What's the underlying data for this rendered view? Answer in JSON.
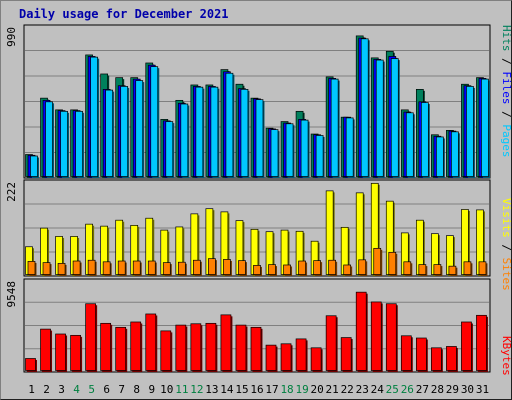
{
  "chart_data": {
    "type": "bar",
    "title": "Daily usage for December 2021",
    "categories": [
      "1",
      "2",
      "3",
      "4",
      "5",
      "6",
      "7",
      "8",
      "9",
      "10",
      "11",
      "12",
      "13",
      "14",
      "15",
      "16",
      "17",
      "18",
      "19",
      "20",
      "21",
      "22",
      "23",
      "24",
      "25",
      "26",
      "27",
      "28",
      "29",
      "30",
      "31"
    ],
    "weekend_days": [
      "4",
      "5",
      "11",
      "12",
      "18",
      "19",
      "25",
      "26"
    ],
    "panels": [
      {
        "name": "hits-files-pages",
        "ymax_label": "990",
        "ymax": 990,
        "right_labels": [
          "Hits",
          "Files",
          "Pages"
        ],
        "series": [
          {
            "name": "Hits",
            "color": "#00805c",
            "values": [
              150,
              535,
              455,
              455,
              830,
              700,
              675,
              675,
              775,
              390,
              520,
              625,
              625,
              730,
              630,
              535,
              330,
              375,
              445,
              290,
              680,
              405,
              960,
              810,
              855,
              455,
              595,
              285,
              315,
              630,
              675
            ]
          },
          {
            "name": "Files",
            "color": "#0000ff",
            "values": [
              145,
              520,
              450,
              450,
              820,
              595,
              620,
              665,
              760,
              380,
              500,
              615,
              615,
              715,
              600,
              530,
              325,
              365,
              390,
              285,
              670,
              405,
              945,
              800,
              820,
              440,
              510,
              275,
              310,
              620,
              670
            ]
          },
          {
            "name": "Pages",
            "color": "#00c8ff",
            "values": [
              140,
              510,
              445,
              445,
              815,
              590,
              615,
              655,
              750,
              375,
              495,
              610,
              610,
              705,
              595,
              525,
              320,
              360,
              385,
              280,
              665,
              400,
              940,
              795,
              805,
              435,
              505,
              270,
              305,
              615,
              665
            ]
          }
        ]
      },
      {
        "name": "visits-sites",
        "ymax_label": "222",
        "ymax": 222,
        "right_labels": [
          "Visits",
          "Sites"
        ],
        "series": [
          {
            "name": "Visits",
            "color": "#ffff00",
            "values": [
              70,
              117,
              96,
              96,
              127,
              122,
              137,
              124,
              142,
              112,
              120,
              153,
              166,
              158,
              136,
              114,
              108,
              112,
              109,
              84,
              211,
              119,
              206,
              230,
              185,
              105,
              137,
              103,
              98,
              164,
              163
            ]
          },
          {
            "name": "Sites",
            "color": "#ff8000",
            "values": [
              33,
              30,
              28,
              34,
              36,
              32,
              34,
              34,
              34,
              30,
              31,
              36,
              40,
              38,
              35,
              23,
              25,
              24,
              34,
              35,
              36,
              24,
              37,
              66,
              56,
              32,
              25,
              25,
              21,
              32,
              32
            ]
          }
        ]
      },
      {
        "name": "kbytes",
        "ymax_label": "9548",
        "ymax": 9548,
        "right_labels": [
          "KBytes"
        ],
        "series": [
          {
            "name": "KBytes",
            "color": "#ff0000",
            "values": [
              1350,
              4650,
              4100,
              3950,
              7500,
              5300,
              4850,
              5450,
              6350,
              4450,
              5100,
              5250,
              5300,
              6250,
              5100,
              4850,
              2850,
              3000,
              3550,
              2550,
              6150,
              3700,
              8800,
              7700,
              7500,
              3900,
              3650,
              2550,
              2700,
              5450,
              6200
            ]
          }
        ]
      }
    ]
  }
}
